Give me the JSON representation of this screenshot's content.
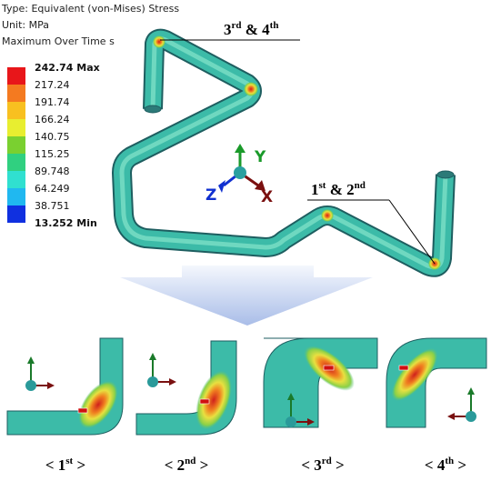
{
  "header": {
    "type_line": "Type: Equivalent (von-Mises) Stress",
    "unit_line": "Unit: MPa",
    "time_line": "Maximum Over Time s"
  },
  "legend": {
    "labels": [
      "242.74 Max",
      "217.24",
      "191.74",
      "166.24",
      "140.75",
      "115.25",
      "89.748",
      "64.249",
      "38.751",
      "13.252 Min"
    ]
  },
  "axes": {
    "y": "Y",
    "z": "Z",
    "x": "X"
  },
  "callouts": [
    {
      "parts": [
        "3",
        "rd",
        " & ",
        "4",
        "th"
      ]
    },
    {
      "parts": [
        "1",
        "st",
        " & ",
        "2",
        "nd"
      ]
    }
  ],
  "captions": [
    {
      "parts": [
        "< 1",
        "st",
        " >"
      ]
    },
    {
      "parts": [
        "< 2",
        "nd",
        " >"
      ]
    },
    {
      "parts": [
        "< 3",
        "rd",
        " >"
      ]
    },
    {
      "parts": [
        "< 4",
        "th",
        " >"
      ]
    }
  ]
}
